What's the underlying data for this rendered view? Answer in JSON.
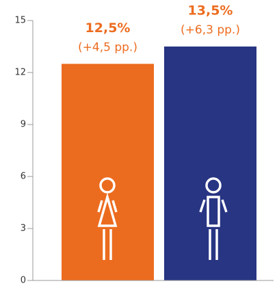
{
  "chart_data": {
    "type": "bar",
    "categories": [
      null,
      null
    ],
    "values": [
      12.5,
      13.5
    ],
    "value_labels": [
      "12,5%",
      "13,5%"
    ],
    "annotations": [
      "(+4,5 pp.)",
      "(+6,3 pp.)"
    ],
    "colors": [
      "#ec6c1f",
      "#283583"
    ],
    "ylim": [
      0,
      15
    ],
    "yticks": [
      0,
      3,
      6,
      9,
      12,
      15
    ]
  }
}
